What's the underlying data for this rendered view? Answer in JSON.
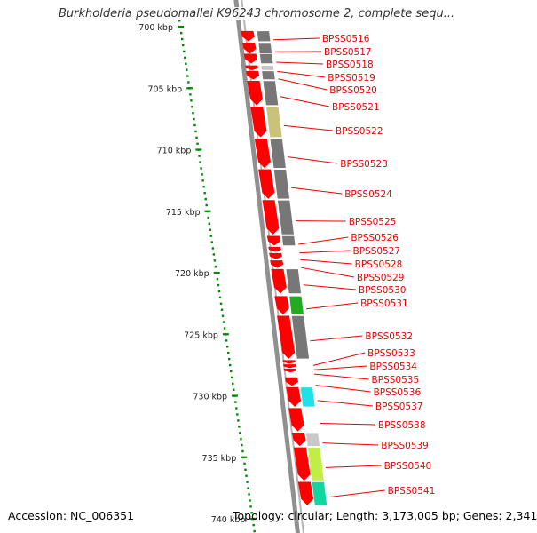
{
  "title": "Burkholderia pseudomallei K96243 chromosome 2, complete sequ...",
  "footer": {
    "accession": "Accession: NC_006351",
    "summary": "Topology: circular; Length: 3,173,005 bp; Genes: 2,341"
  },
  "colors": {
    "gene_arrow": "#ff0000",
    "gene_label": "#ee0000",
    "backbone": "#909090",
    "ruler_dots": "#008800",
    "cog_dark_gray": "#777777",
    "cog_olive": "#c8c27a",
    "cog_green": "#22aa22",
    "cog_cyan": "#22e0e6",
    "cog_light_gray": "#c8c8c8",
    "cog_yellow_green": "#c0ee44",
    "cog_teal": "#10d6a2"
  },
  "scale": {
    "unit": "kbp",
    "ticks": [
      {
        "kbp": 700,
        "label": "700 kbp"
      },
      {
        "kbp": 705,
        "label": "705 kbp"
      },
      {
        "kbp": 710,
        "label": "710 kbp"
      },
      {
        "kbp": 715,
        "label": "715 kbp"
      },
      {
        "kbp": 720,
        "label": "720 kbp"
      },
      {
        "kbp": 725,
        "label": "725 kbp"
      },
      {
        "kbp": 730,
        "label": "730 kbp"
      },
      {
        "kbp": 735,
        "label": "735 kbp"
      },
      {
        "kbp": 740,
        "label": "740 kbp"
      }
    ]
  },
  "genes": [
    {
      "label": "BPSS0516",
      "start_kbp": 700.35,
      "end_kbp": 701.2,
      "cog": "cog_dark_gray"
    },
    {
      "label": "BPSS0517",
      "start_kbp": 701.3,
      "end_kbp": 702.2,
      "cog": "cog_dark_gray"
    },
    {
      "label": "BPSS0518",
      "start_kbp": 702.2,
      "end_kbp": 703.0,
      "cog": "cog_dark_gray"
    },
    {
      "label": "BPSS0519",
      "start_kbp": 703.15,
      "end_kbp": 703.55,
      "cog": "cog_light_gray"
    },
    {
      "label": "BPSS0520",
      "start_kbp": 703.6,
      "end_kbp": 704.3,
      "cog": "cog_dark_gray"
    },
    {
      "label": "BPSS0521",
      "start_kbp": 704.4,
      "end_kbp": 706.4,
      "cog": "cog_dark_gray"
    },
    {
      "label": "BPSS0522",
      "start_kbp": 706.5,
      "end_kbp": 709.0,
      "cog": "cog_olive"
    },
    {
      "label": "BPSS0523",
      "start_kbp": 709.1,
      "end_kbp": 711.5,
      "cog": "cog_dark_gray"
    },
    {
      "label": "BPSS0524",
      "start_kbp": 711.6,
      "end_kbp": 714.0,
      "cog": "cog_dark_gray"
    },
    {
      "label": "BPSS0525",
      "start_kbp": 714.1,
      "end_kbp": 716.9,
      "cog": "cog_dark_gray"
    },
    {
      "label": "BPSS0526",
      "start_kbp": 717.0,
      "end_kbp": 717.8,
      "cog": "cog_dark_gray"
    },
    {
      "label": "BPSS0527",
      "start_kbp": 717.9,
      "end_kbp": 718.3,
      "cog": null
    },
    {
      "label": "BPSS0528",
      "start_kbp": 718.4,
      "end_kbp": 718.9,
      "cog": null
    },
    {
      "label": "BPSS0529",
      "start_kbp": 719.0,
      "end_kbp": 719.6,
      "cog": null
    },
    {
      "label": "BPSS0530",
      "start_kbp": 719.7,
      "end_kbp": 721.7,
      "cog": "cog_dark_gray"
    },
    {
      "label": "BPSS0531",
      "start_kbp": 721.9,
      "end_kbp": 723.4,
      "cog": "cog_green"
    },
    {
      "label": "BPSS0532",
      "start_kbp": 723.5,
      "end_kbp": 727.0,
      "cog": "cog_dark_gray"
    },
    {
      "label": "BPSS0533",
      "start_kbp": 727.1,
      "end_kbp": 727.4,
      "cog": null
    },
    {
      "label": "BPSS0534",
      "start_kbp": 727.45,
      "end_kbp": 727.75,
      "cog": null
    },
    {
      "label": "BPSS0535",
      "start_kbp": 727.8,
      "end_kbp": 728.1,
      "cog": null
    },
    {
      "label": "BPSS0536",
      "start_kbp": 728.5,
      "end_kbp": 729.2,
      "cog": null
    },
    {
      "label": "BPSS0537",
      "start_kbp": 729.3,
      "end_kbp": 730.9,
      "cog": "cog_cyan"
    },
    {
      "label": "BPSS0538",
      "start_kbp": 731.0,
      "end_kbp": 732.9,
      "cog": null
    },
    {
      "label": "BPSS0539",
      "start_kbp": 733.0,
      "end_kbp": 734.1,
      "cog": "cog_light_gray"
    },
    {
      "label": "BPSS0540",
      "start_kbp": 734.2,
      "end_kbp": 736.9,
      "cog": "cog_yellow_green"
    },
    {
      "label": "BPSS0541",
      "start_kbp": 737.0,
      "end_kbp": 738.9,
      "cog": "cog_teal"
    }
  ]
}
